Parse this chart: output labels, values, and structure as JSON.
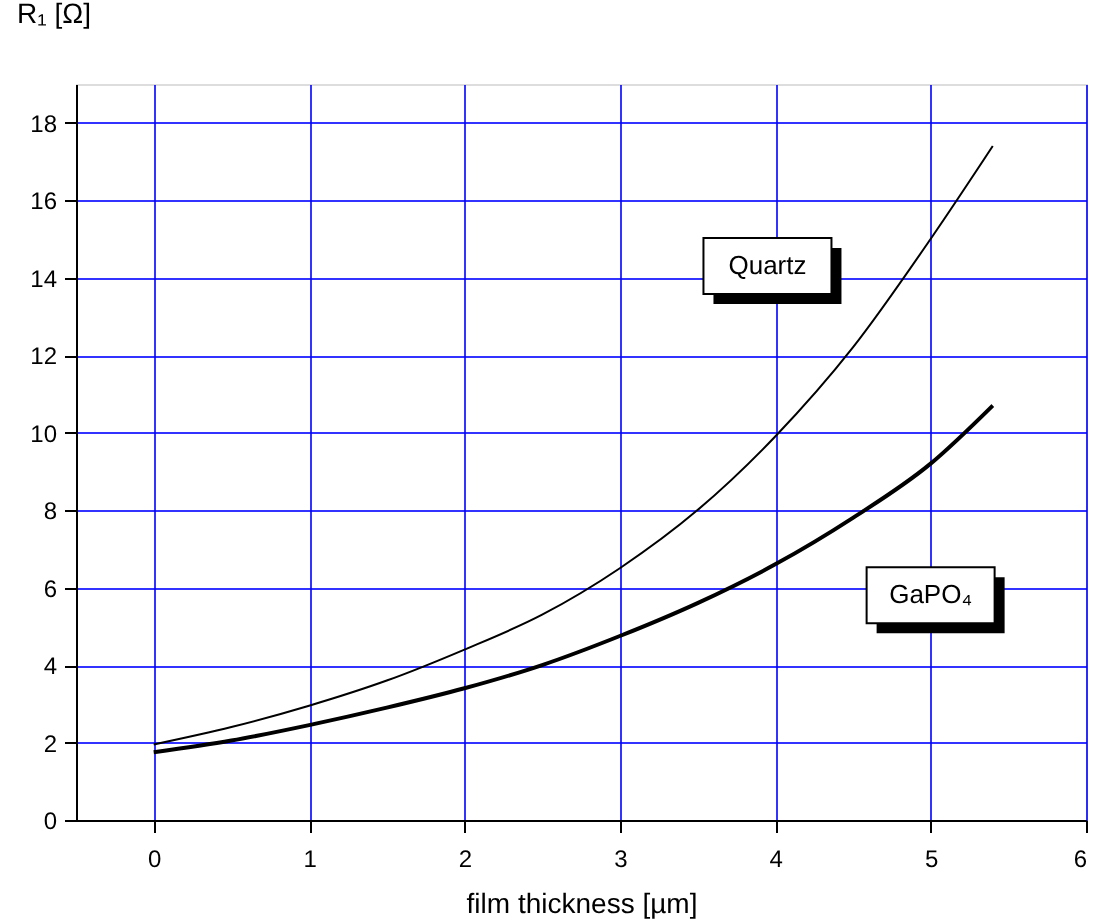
{
  "chart_data": {
    "type": "line",
    "xlabel": "film thickness [µm]",
    "ylabel": "R₁ [Ω]",
    "xlim": [
      -0.5,
      6
    ],
    "xticks": [
      0,
      1,
      2,
      3,
      4,
      5,
      6
    ],
    "ylim": [
      0,
      19
    ],
    "yticks": [
      0,
      2,
      4,
      6,
      8,
      10,
      12,
      14,
      16,
      18
    ],
    "grid": true,
    "marker": "none",
    "line_style": "solid",
    "x": [
      0,
      0.5,
      1,
      1.5,
      2,
      2.5,
      3,
      3.5,
      4,
      4.5,
      5,
      5.4
    ],
    "series": [
      {
        "name": "Quartz",
        "color": "#000000",
        "values": [
          1.95,
          2.4,
          2.95,
          3.6,
          4.4,
          5.3,
          6.5,
          8.0,
          9.9,
          12.2,
          15.0,
          17.4
        ]
      },
      {
        "name": "GaPO₄",
        "color": "#000000",
        "values": [
          1.75,
          2.05,
          2.45,
          2.9,
          3.4,
          4.0,
          4.75,
          5.6,
          6.6,
          7.8,
          9.2,
          10.7
        ]
      }
    ]
  }
}
